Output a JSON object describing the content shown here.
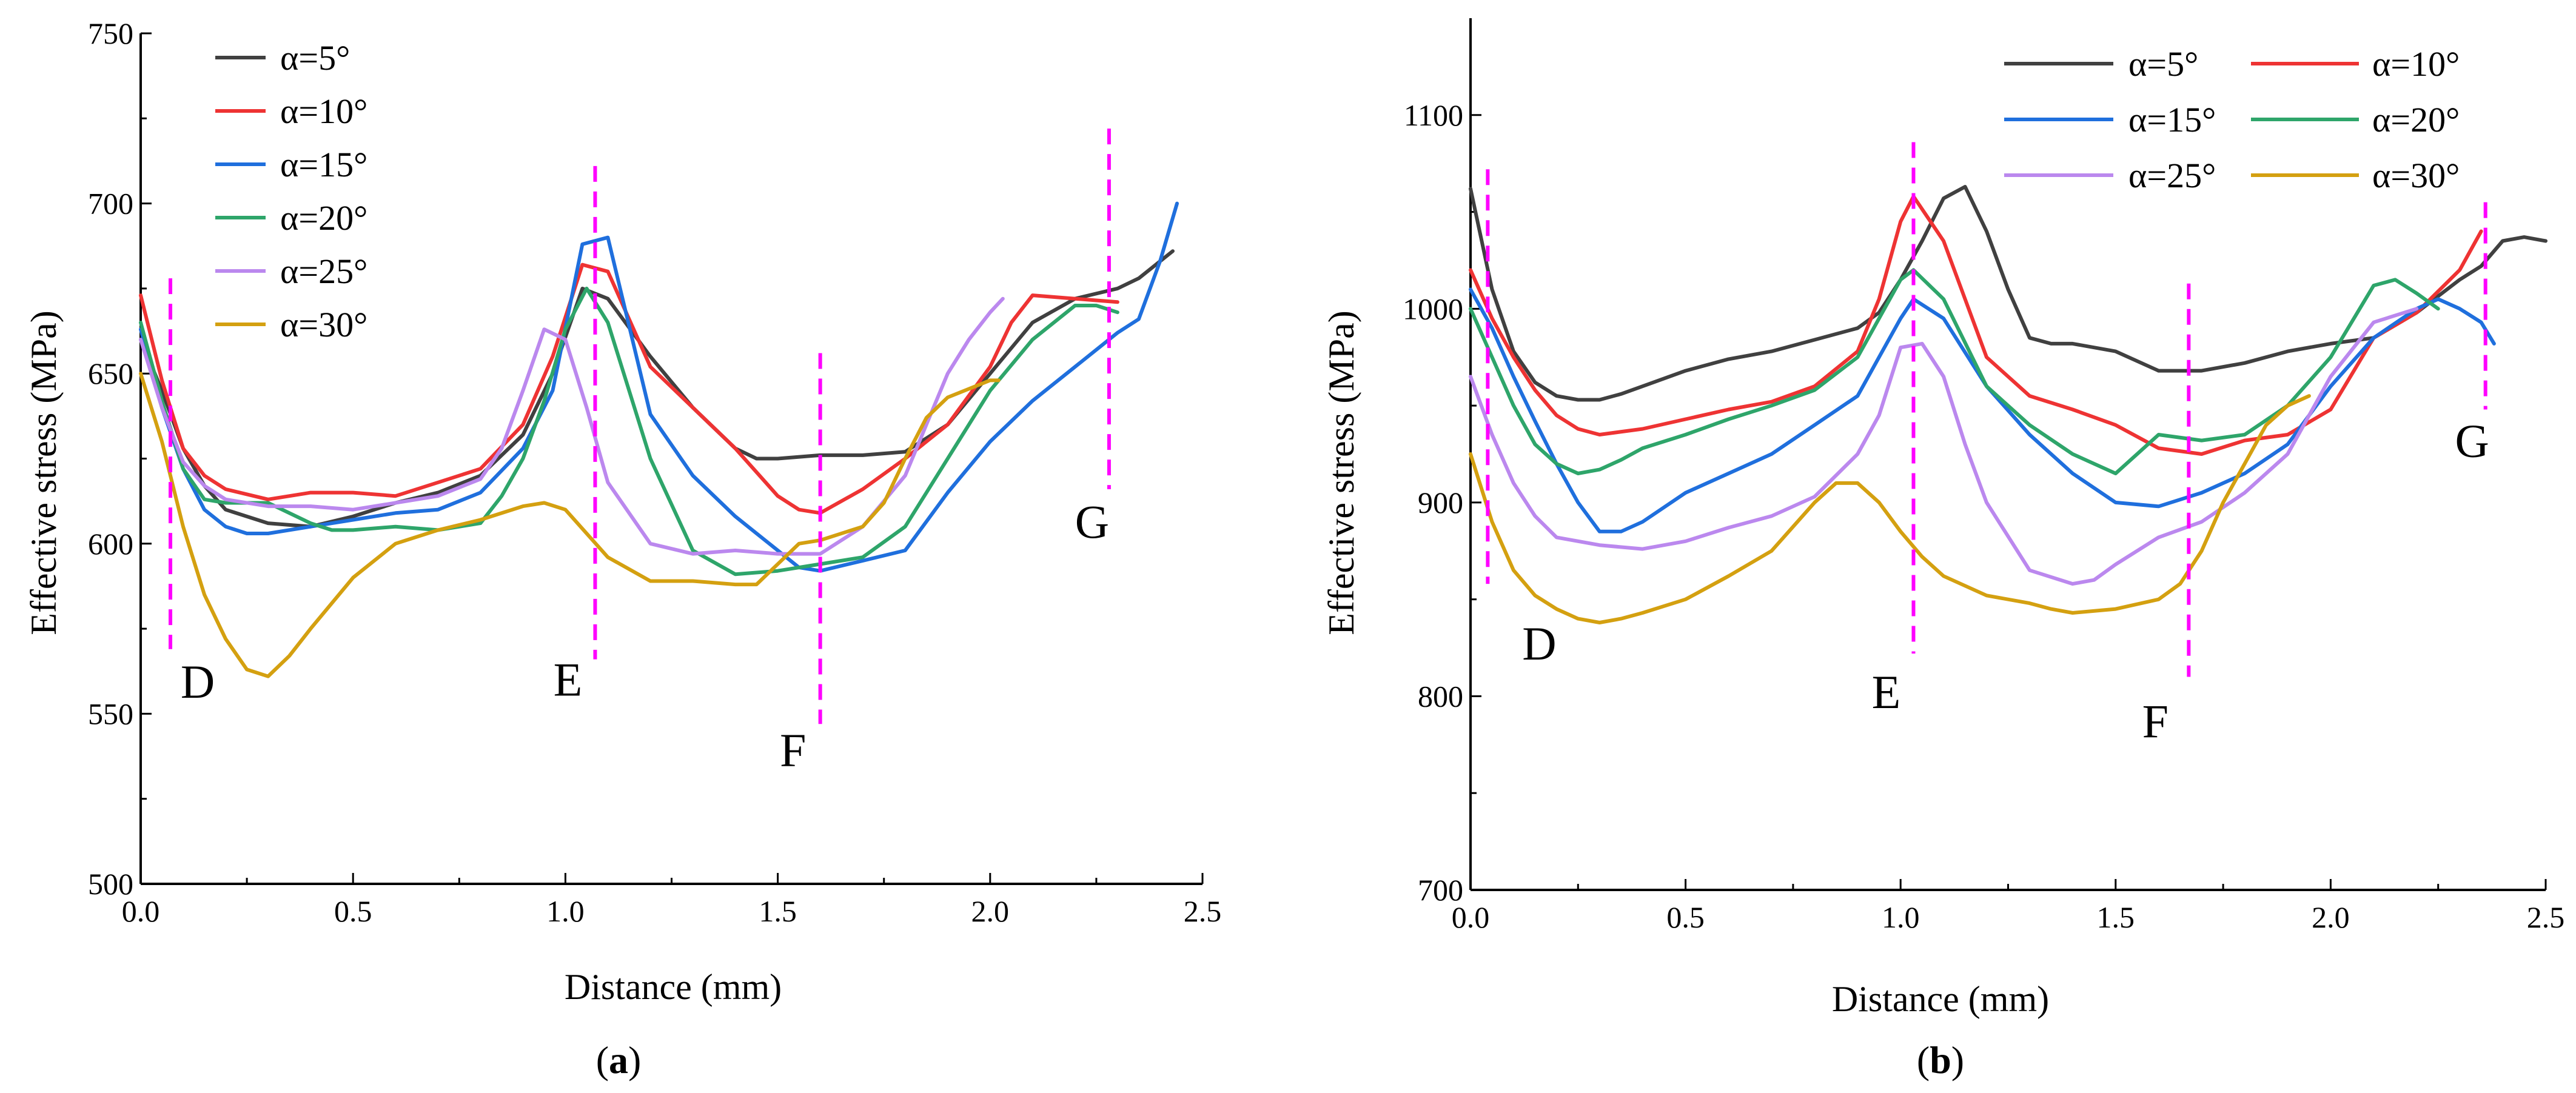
{
  "colors": {
    "series": [
      "#404040",
      "#ee3333",
      "#1f6fdd",
      "#2ea56a",
      "#bb88ee",
      "#d4a010"
    ],
    "marker": "#ff00ff",
    "axis": "#000000"
  },
  "chart_data": [
    {
      "type": "line",
      "caption_left": "(",
      "caption_letter": "a",
      "caption_right": ")",
      "xlabel": "Distance (mm)",
      "ylabel": "Effective stress (MPa)",
      "xlim": [
        0,
        2.5
      ],
      "ylim": [
        500,
        750
      ],
      "xticks": [
        0.0,
        0.5,
        1.0,
        1.5,
        2.0,
        2.5
      ],
      "yticks": [
        500,
        550,
        600,
        650,
        700,
        750
      ],
      "xtick_labels": [
        "0.0",
        "0.5",
        "1.0",
        "1.5",
        "2.0",
        "2.5"
      ],
      "ytick_labels": [
        "500",
        "550",
        "600",
        "650",
        "700",
        "750"
      ],
      "legend_position": "top-left",
      "series": [
        {
          "name": "α=5°",
          "x": [
            0.0,
            0.05,
            0.1,
            0.15,
            0.2,
            0.3,
            0.4,
            0.5,
            0.6,
            0.7,
            0.8,
            0.9,
            0.97,
            1.04,
            1.1,
            1.2,
            1.3,
            1.4,
            1.45,
            1.5,
            1.6,
            1.7,
            1.8,
            1.9,
            2.0,
            2.1,
            2.2,
            2.3,
            2.35,
            2.4,
            2.43
          ],
          "y": [
            660,
            645,
            628,
            617,
            610,
            606,
            605,
            608,
            612,
            615,
            620,
            632,
            650,
            675,
            672,
            655,
            640,
            628,
            625,
            625,
            626,
            626,
            627,
            635,
            650,
            665,
            672,
            675,
            678,
            683,
            686
          ]
        },
        {
          "name": "α=10°",
          "x": [
            0.0,
            0.05,
            0.1,
            0.15,
            0.2,
            0.3,
            0.4,
            0.5,
            0.6,
            0.7,
            0.8,
            0.9,
            0.97,
            1.04,
            1.1,
            1.2,
            1.3,
            1.4,
            1.5,
            1.55,
            1.6,
            1.7,
            1.8,
            1.9,
            2.0,
            2.05,
            2.1,
            2.2,
            2.3
          ],
          "y": [
            673,
            648,
            628,
            620,
            616,
            613,
            615,
            615,
            614,
            618,
            622,
            635,
            655,
            682,
            680,
            652,
            640,
            628,
            614,
            610,
            609,
            616,
            625,
            635,
            652,
            665,
            673,
            672,
            671
          ]
        },
        {
          "name": "α=15°",
          "x": [
            0.0,
            0.05,
            0.1,
            0.15,
            0.2,
            0.25,
            0.3,
            0.4,
            0.5,
            0.6,
            0.7,
            0.8,
            0.9,
            0.97,
            1.04,
            1.1,
            1.2,
            1.3,
            1.4,
            1.5,
            1.55,
            1.6,
            1.7,
            1.8,
            1.9,
            2.0,
            2.1,
            2.2,
            2.3,
            2.35,
            2.4,
            2.44
          ],
          "y": [
            663,
            640,
            622,
            610,
            605,
            603,
            603,
            605,
            607,
            609,
            610,
            615,
            628,
            645,
            688,
            690,
            638,
            620,
            608,
            598,
            593,
            592,
            595,
            598,
            615,
            630,
            642,
            652,
            662,
            666,
            683,
            700
          ]
        },
        {
          "name": "α=20°",
          "x": [
            0.0,
            0.05,
            0.1,
            0.15,
            0.2,
            0.3,
            0.4,
            0.45,
            0.5,
            0.6,
            0.7,
            0.8,
            0.85,
            0.9,
            0.95,
            1.0,
            1.05,
            1.1,
            1.2,
            1.3,
            1.4,
            1.5,
            1.6,
            1.7,
            1.8,
            1.9,
            2.0,
            2.1,
            2.2,
            2.25,
            2.3
          ],
          "y": [
            665,
            642,
            622,
            613,
            612,
            612,
            606,
            604,
            604,
            605,
            604,
            606,
            614,
            625,
            642,
            663,
            675,
            665,
            625,
            598,
            591,
            592,
            594,
            596,
            605,
            625,
            645,
            660,
            670,
            670,
            668
          ]
        },
        {
          "name": "α=25°",
          "x": [
            0.0,
            0.05,
            0.1,
            0.15,
            0.2,
            0.3,
            0.4,
            0.5,
            0.6,
            0.7,
            0.8,
            0.85,
            0.9,
            0.95,
            1.0,
            1.05,
            1.1,
            1.2,
            1.3,
            1.4,
            1.5,
            1.6,
            1.7,
            1.8,
            1.85,
            1.9,
            1.95,
            2.0,
            2.03
          ],
          "y": [
            660,
            640,
            624,
            617,
            613,
            611,
            611,
            610,
            612,
            614,
            619,
            628,
            645,
            663,
            660,
            640,
            618,
            600,
            597,
            598,
            597,
            597,
            605,
            620,
            635,
            650,
            660,
            668,
            672
          ]
        },
        {
          "name": "α=30°",
          "x": [
            0.0,
            0.05,
            0.1,
            0.15,
            0.2,
            0.25,
            0.3,
            0.35,
            0.4,
            0.5,
            0.6,
            0.7,
            0.8,
            0.9,
            0.95,
            1.0,
            1.05,
            1.1,
            1.2,
            1.3,
            1.4,
            1.45,
            1.5,
            1.55,
            1.6,
            1.7,
            1.75,
            1.8,
            1.85,
            1.9,
            2.0,
            2.02
          ],
          "y": [
            650,
            630,
            605,
            585,
            572,
            563,
            561,
            567,
            575,
            590,
            600,
            604,
            607,
            611,
            612,
            610,
            603,
            596,
            589,
            589,
            588,
            588,
            594,
            600,
            601,
            605,
            612,
            625,
            637,
            643,
            648,
            648
          ]
        }
      ],
      "markers": [
        {
          "label": "D",
          "x": 0.07,
          "y_top": 678,
          "y_bottom": 569
        },
        {
          "label": "E",
          "x": 1.07,
          "y_top": 711,
          "y_bottom": 566
        },
        {
          "label": "F",
          "x": 1.6,
          "y_top": 656,
          "y_bottom": 547
        },
        {
          "label": "G",
          "x": 2.28,
          "y_top": 722,
          "y_bottom": 616
        }
      ]
    },
    {
      "type": "line",
      "caption_left": "(",
      "caption_letter": "b",
      "caption_right": ")",
      "xlabel": "Distance (mm)",
      "ylabel": "Effective stress (MPa)",
      "xlim": [
        0,
        2.5
      ],
      "ylim": [
        700,
        1150
      ],
      "xticks": [
        0.0,
        0.5,
        1.0,
        1.5,
        2.0,
        2.5
      ],
      "yticks": [
        700,
        800,
        900,
        1000,
        1100
      ],
      "xtick_labels": [
        "0.0",
        "0.5",
        "1.0",
        "1.5",
        "2.0",
        "2.5"
      ],
      "ytick_labels": [
        "700",
        "800",
        "900",
        "1000",
        "1100"
      ],
      "legend_position": "top-right",
      "series": [
        {
          "name": "α=5°",
          "x": [
            0.0,
            0.05,
            0.1,
            0.15,
            0.2,
            0.25,
            0.3,
            0.35,
            0.4,
            0.5,
            0.6,
            0.7,
            0.8,
            0.9,
            0.95,
            1.0,
            1.05,
            1.1,
            1.15,
            1.2,
            1.25,
            1.3,
            1.35,
            1.4,
            1.5,
            1.6,
            1.7,
            1.8,
            1.9,
            2.0,
            2.1,
            2.2,
            2.3,
            2.35,
            2.4,
            2.45,
            2.5
          ],
          "y": [
            1062,
            1010,
            978,
            962,
            955,
            953,
            953,
            956,
            960,
            968,
            974,
            978,
            984,
            990,
            998,
            1015,
            1035,
            1057,
            1063,
            1040,
            1010,
            985,
            982,
            982,
            978,
            968,
            968,
            972,
            978,
            982,
            985,
            998,
            1015,
            1022,
            1035,
            1037,
            1035
          ]
        },
        {
          "name": "α=10°",
          "x": [
            0.0,
            0.05,
            0.1,
            0.15,
            0.2,
            0.25,
            0.3,
            0.4,
            0.5,
            0.6,
            0.7,
            0.8,
            0.9,
            0.95,
            1.0,
            1.03,
            1.1,
            1.2,
            1.3,
            1.4,
            1.5,
            1.6,
            1.7,
            1.8,
            1.9,
            2.0,
            2.1,
            2.2,
            2.3,
            2.35
          ],
          "y": [
            1020,
            995,
            975,
            958,
            945,
            938,
            935,
            938,
            943,
            948,
            952,
            960,
            978,
            1005,
            1045,
            1058,
            1035,
            975,
            955,
            948,
            940,
            928,
            925,
            932,
            935,
            948,
            985,
            998,
            1020,
            1040
          ]
        },
        {
          "name": "α=15°",
          "x": [
            0.0,
            0.05,
            0.1,
            0.15,
            0.2,
            0.25,
            0.3,
            0.35,
            0.4,
            0.5,
            0.6,
            0.7,
            0.8,
            0.9,
            0.95,
            1.0,
            1.03,
            1.1,
            1.2,
            1.3,
            1.4,
            1.5,
            1.6,
            1.7,
            1.8,
            1.9,
            2.0,
            2.1,
            2.2,
            2.25,
            2.3,
            2.35,
            2.38
          ],
          "y": [
            1010,
            990,
            965,
            942,
            920,
            900,
            885,
            885,
            890,
            905,
            915,
            925,
            940,
            955,
            975,
            995,
            1005,
            995,
            960,
            935,
            915,
            900,
            898,
            905,
            915,
            930,
            960,
            985,
            1000,
            1005,
            1000,
            993,
            982
          ]
        },
        {
          "name": "α=20°",
          "x": [
            0.0,
            0.05,
            0.1,
            0.15,
            0.2,
            0.25,
            0.3,
            0.35,
            0.4,
            0.5,
            0.6,
            0.7,
            0.8,
            0.9,
            0.95,
            1.0,
            1.03,
            1.1,
            1.2,
            1.3,
            1.4,
            1.5,
            1.55,
            1.6,
            1.7,
            1.8,
            1.9,
            2.0,
            2.1,
            2.15,
            2.2,
            2.25
          ],
          "y": [
            1000,
            975,
            950,
            930,
            920,
            915,
            917,
            922,
            928,
            935,
            943,
            950,
            958,
            975,
            995,
            1015,
            1020,
            1005,
            960,
            940,
            925,
            915,
            925,
            935,
            932,
            935,
            950,
            975,
            1012,
            1015,
            1008,
            1000
          ]
        },
        {
          "name": "α=25°",
          "x": [
            0.0,
            0.05,
            0.1,
            0.15,
            0.2,
            0.3,
            0.4,
            0.5,
            0.6,
            0.7,
            0.8,
            0.9,
            0.95,
            1.0,
            1.05,
            1.1,
            1.15,
            1.2,
            1.3,
            1.4,
            1.45,
            1.5,
            1.6,
            1.7,
            1.8,
            1.9,
            2.0,
            2.1,
            2.2
          ],
          "y": [
            965,
            935,
            910,
            893,
            882,
            878,
            876,
            880,
            887,
            893,
            903,
            925,
            945,
            980,
            982,
            965,
            930,
            900,
            865,
            858,
            860,
            868,
            882,
            890,
            905,
            925,
            965,
            993,
            1000
          ]
        },
        {
          "name": "α=30°",
          "x": [
            0.0,
            0.05,
            0.1,
            0.15,
            0.2,
            0.25,
            0.3,
            0.35,
            0.4,
            0.5,
            0.6,
            0.7,
            0.8,
            0.85,
            0.9,
            0.95,
            1.0,
            1.05,
            1.1,
            1.2,
            1.3,
            1.35,
            1.4,
            1.5,
            1.6,
            1.65,
            1.7,
            1.75,
            1.8,
            1.85,
            1.9,
            1.95
          ],
          "y": [
            925,
            890,
            865,
            852,
            845,
            840,
            838,
            840,
            843,
            850,
            862,
            875,
            900,
            910,
            910,
            900,
            885,
            872,
            862,
            852,
            848,
            845,
            843,
            845,
            850,
            858,
            875,
            900,
            920,
            940,
            950,
            955
          ]
        }
      ],
      "markers": [
        {
          "label": "D",
          "x": 0.04,
          "y_top": 1072,
          "y_bottom": 858
        },
        {
          "label": "E",
          "x": 1.03,
          "y_top": 1086,
          "y_bottom": 822
        },
        {
          "label": "F",
          "x": 1.67,
          "y_top": 1013,
          "y_bottom": 810
        },
        {
          "label": "G",
          "x": 2.36,
          "y_top": 1055,
          "y_bottom": 948
        }
      ]
    }
  ]
}
